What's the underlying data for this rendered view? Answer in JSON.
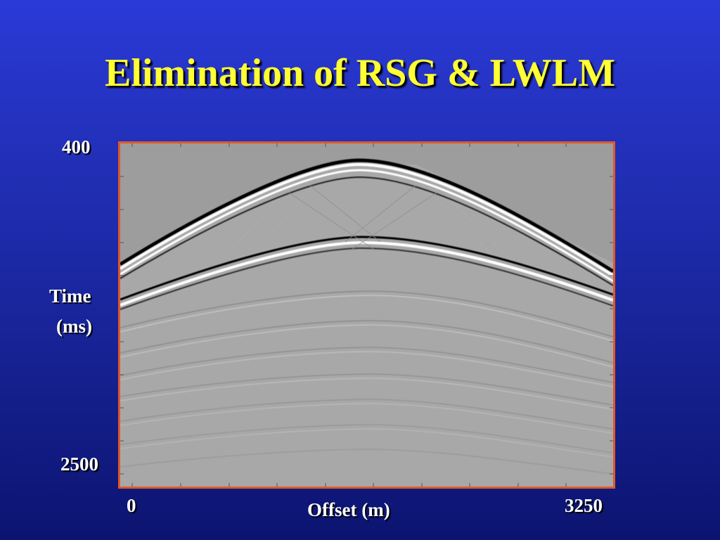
{
  "slide": {
    "title": "Elimination of RSG & LWLM"
  },
  "axes": {
    "y_top_label": "400",
    "y_bottom_label": "2500",
    "y_title_line1": "Time",
    "y_title_line2": "(ms)",
    "x_left_label": "0",
    "x_right_label": "3250",
    "x_title": "Offset (m)"
  },
  "colors": {
    "background": "#1d2aa8",
    "title": "#ffff33",
    "frame_border": "#e0582a",
    "panel_gray": "#a7a7a7"
  }
}
